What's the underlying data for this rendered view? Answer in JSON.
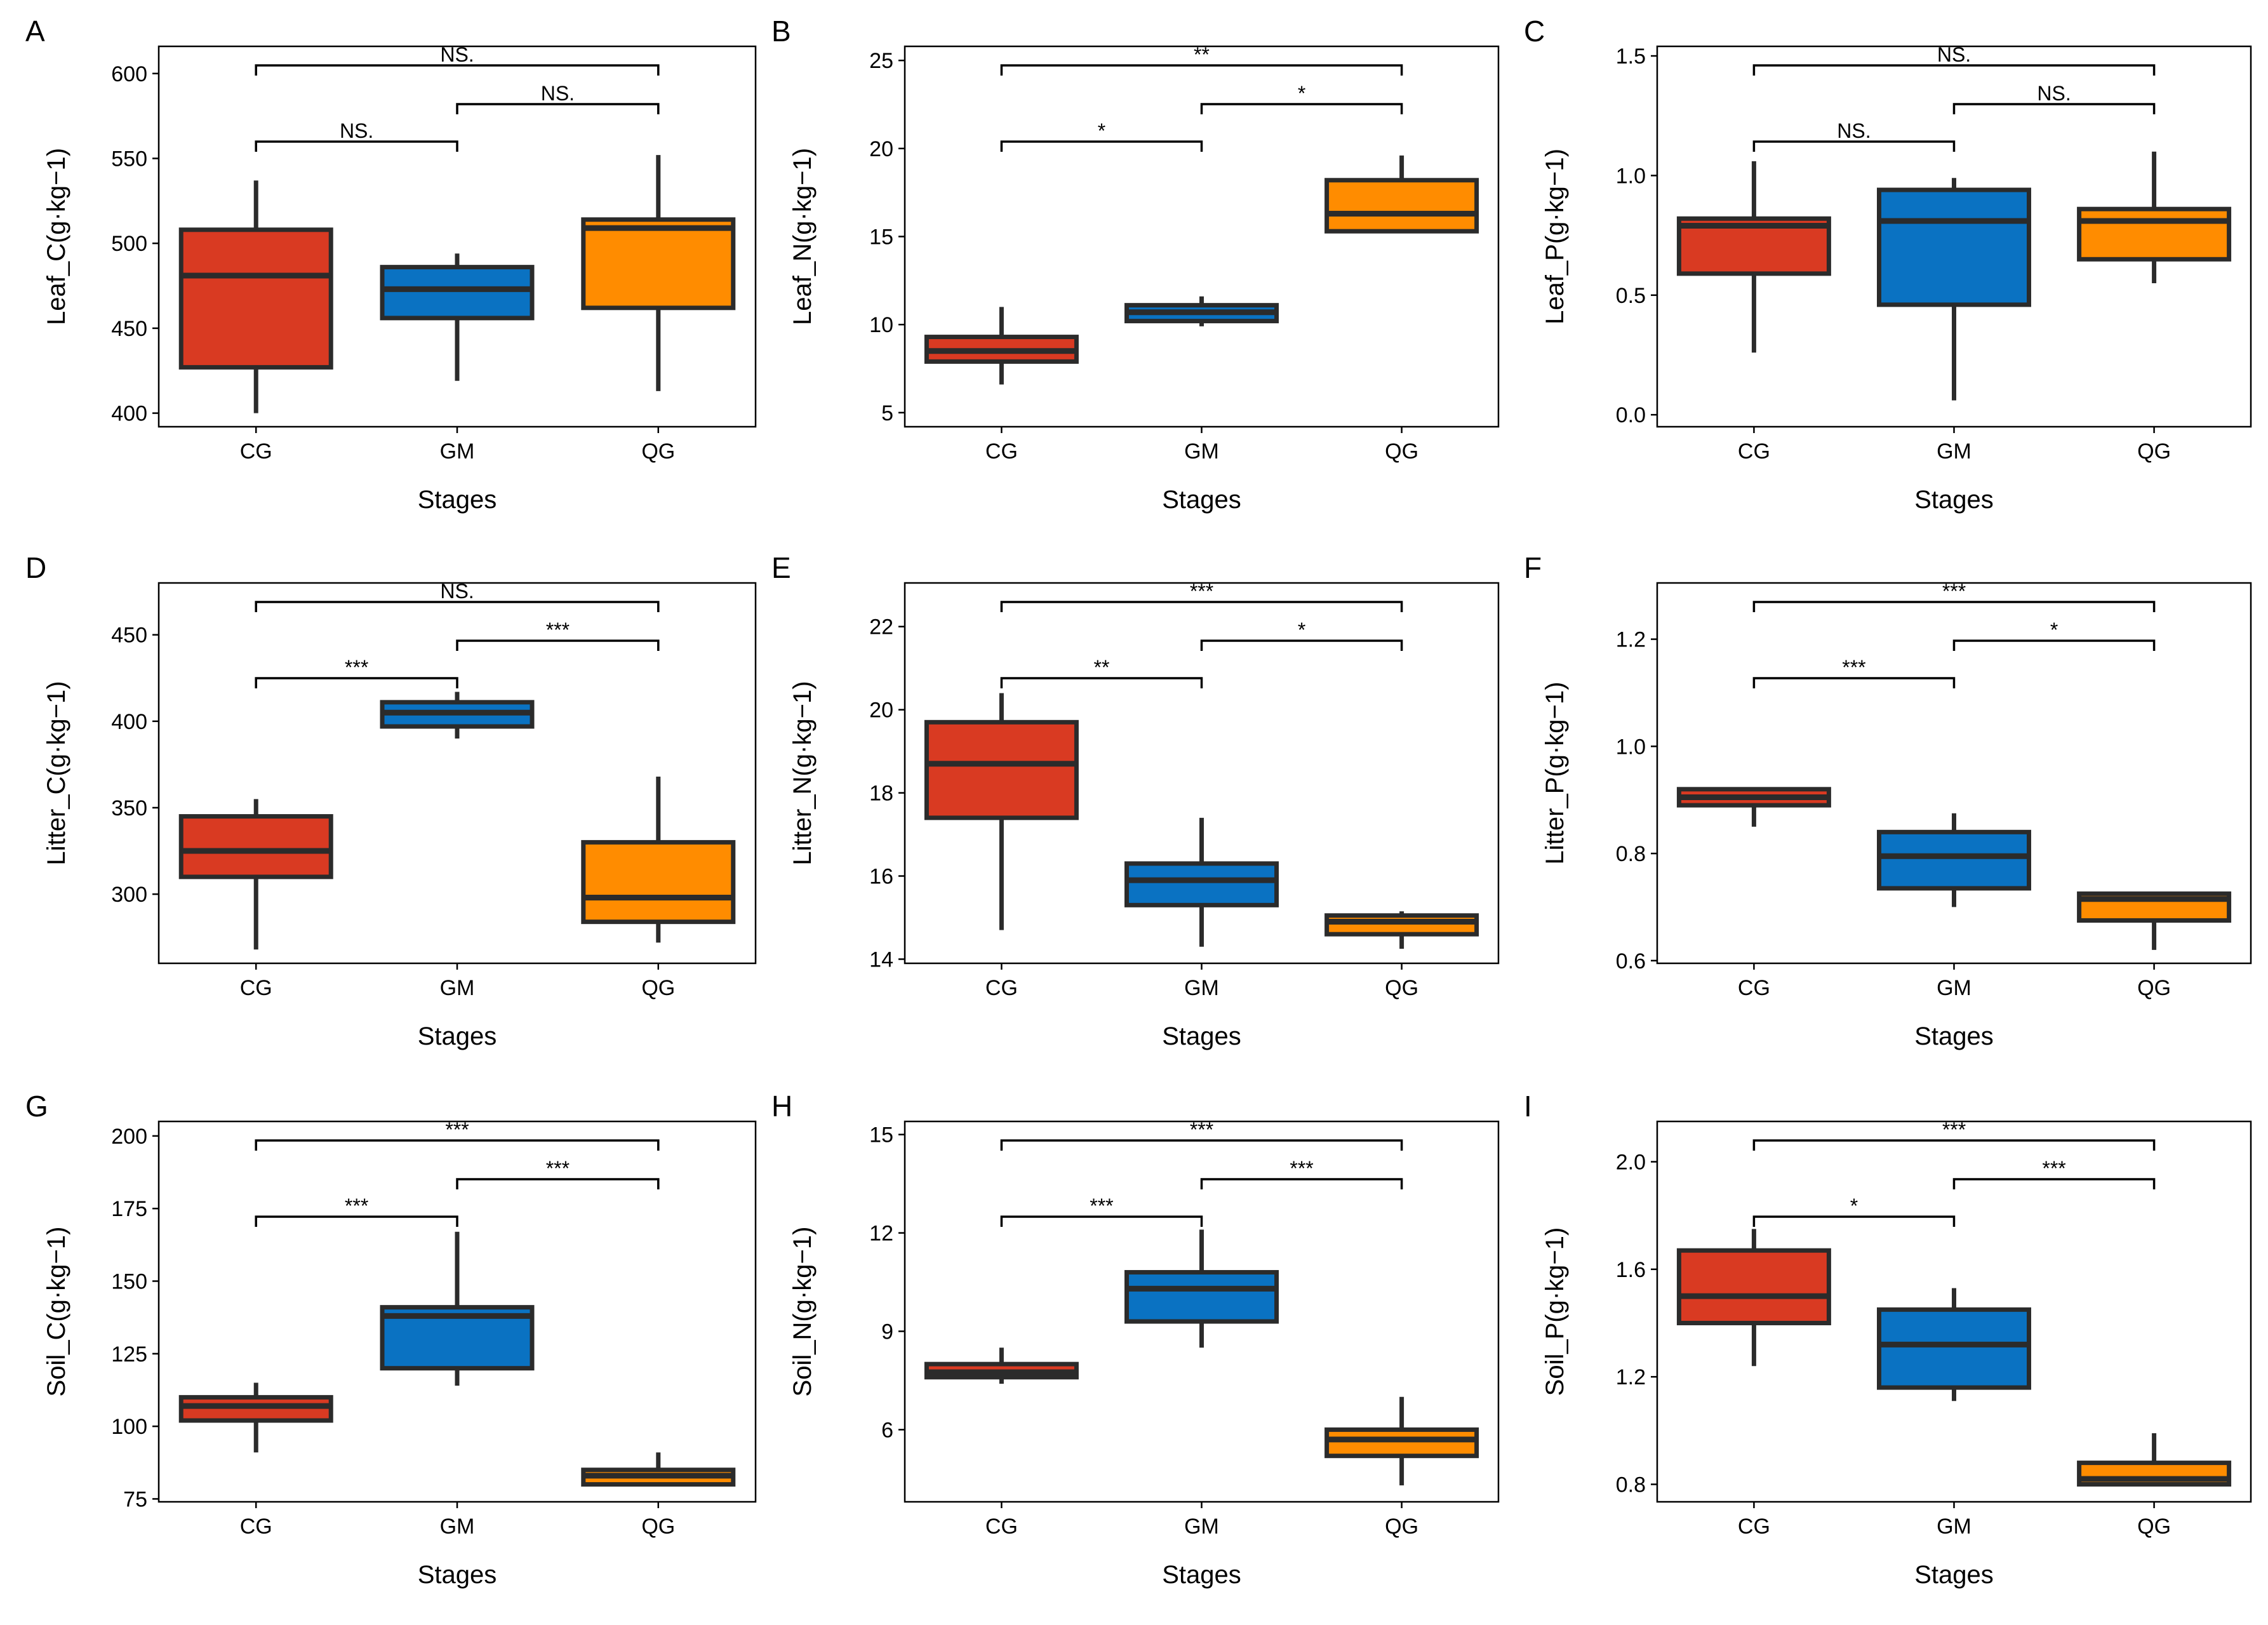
{
  "figure": {
    "x_title": "Stages",
    "categories": [
      "CG",
      "GM",
      "QG"
    ],
    "colors": {
      "CG": "#d93a22",
      "GM": "#0a72c2",
      "QG": "#ff8c00",
      "outline": "#2b2b2b"
    }
  },
  "chart_data": [
    {
      "type": "box",
      "panel": "A",
      "ylabel": "Leaf_C(g·kg−1)",
      "xlabel": "Stages",
      "categories": [
        "CG",
        "GM",
        "QG"
      ],
      "ylim": [
        392,
        616
      ],
      "yticks": [
        400,
        450,
        500,
        550,
        600
      ],
      "boxes": [
        {
          "category": "CG",
          "min": 400,
          "q1": 427,
          "median": 481,
          "q3": 508,
          "max": 537
        },
        {
          "category": "GM",
          "min": 419,
          "q1": 456,
          "median": 473,
          "q3": 486,
          "max": 494
        },
        {
          "category": "QG",
          "min": 413,
          "q1": 462,
          "median": 509,
          "q3": 514,
          "max": 552
        }
      ],
      "significance": [
        {
          "from": "CG",
          "to": "GM",
          "label": "NS."
        },
        {
          "from": "GM",
          "to": "QG",
          "label": "NS."
        },
        {
          "from": "CG",
          "to": "QG",
          "label": "NS."
        }
      ]
    },
    {
      "type": "box",
      "panel": "B",
      "ylabel": "Leaf_N(g·kg−1)",
      "xlabel": "Stages",
      "categories": [
        "CG",
        "GM",
        "QG"
      ],
      "ylim": [
        4.2,
        25.8
      ],
      "yticks": [
        5,
        10,
        15,
        20,
        25
      ],
      "boxes": [
        {
          "category": "CG",
          "min": 6.6,
          "q1": 7.9,
          "median": 8.5,
          "q3": 9.3,
          "max": 11.0
        },
        {
          "category": "GM",
          "min": 9.9,
          "q1": 10.2,
          "median": 10.7,
          "q3": 11.1,
          "max": 11.6
        },
        {
          "category": "QG",
          "min": 15.3,
          "q1": 15.3,
          "median": 16.3,
          "q3": 18.2,
          "max": 19.6
        }
      ],
      "significance": [
        {
          "from": "CG",
          "to": "GM",
          "label": "*"
        },
        {
          "from": "GM",
          "to": "QG",
          "label": "*"
        },
        {
          "from": "CG",
          "to": "QG",
          "label": "**"
        }
      ]
    },
    {
      "type": "box",
      "panel": "C",
      "ylabel": "Leaf_P(g·kg−1)",
      "xlabel": "Stages",
      "categories": [
        "CG",
        "GM",
        "QG"
      ],
      "ylim": [
        -0.05,
        1.54
      ],
      "yticks": [
        0.0,
        0.5,
        1.0,
        1.5
      ],
      "boxes": [
        {
          "category": "CG",
          "min": 0.26,
          "q1": 0.59,
          "median": 0.79,
          "q3": 0.82,
          "max": 1.06
        },
        {
          "category": "GM",
          "min": 0.06,
          "q1": 0.46,
          "median": 0.81,
          "q3": 0.94,
          "max": 0.99
        },
        {
          "category": "QG",
          "min": 0.55,
          "q1": 0.65,
          "median": 0.81,
          "q3": 0.86,
          "max": 1.1
        }
      ],
      "significance": [
        {
          "from": "CG",
          "to": "GM",
          "label": "NS."
        },
        {
          "from": "GM",
          "to": "QG",
          "label": "NS."
        },
        {
          "from": "CG",
          "to": "QG",
          "label": "NS."
        }
      ]
    },
    {
      "type": "box",
      "panel": "D",
      "ylabel": "Litter_C(g·kg−1)",
      "xlabel": "Stages",
      "categories": [
        "CG",
        "GM",
        "QG"
      ],
      "ylim": [
        260,
        480
      ],
      "yticks": [
        300,
        350,
        400,
        450
      ],
      "boxes": [
        {
          "category": "CG",
          "min": 268,
          "q1": 310,
          "median": 325,
          "q3": 345,
          "max": 355
        },
        {
          "category": "GM",
          "min": 390,
          "q1": 397,
          "median": 405,
          "q3": 411,
          "max": 417
        },
        {
          "category": "QG",
          "min": 272,
          "q1": 284,
          "median": 298,
          "q3": 330,
          "max": 368
        }
      ],
      "significance": [
        {
          "from": "CG",
          "to": "GM",
          "label": "***"
        },
        {
          "from": "GM",
          "to": "QG",
          "label": "***"
        },
        {
          "from": "CG",
          "to": "QG",
          "label": "NS."
        }
      ]
    },
    {
      "type": "box",
      "panel": "E",
      "ylabel": "Litter_N(g·kg−1)",
      "xlabel": "Stages",
      "categories": [
        "CG",
        "GM",
        "QG"
      ],
      "ylim": [
        13.9,
        23.05
      ],
      "yticks": [
        14,
        16,
        18,
        20,
        22
      ],
      "boxes": [
        {
          "category": "CG",
          "min": 14.7,
          "q1": 17.4,
          "median": 18.7,
          "q3": 19.7,
          "max": 20.4
        },
        {
          "category": "GM",
          "min": 14.3,
          "q1": 15.3,
          "median": 15.9,
          "q3": 16.3,
          "max": 17.4
        },
        {
          "category": "QG",
          "min": 14.25,
          "q1": 14.6,
          "median": 14.9,
          "q3": 15.05,
          "max": 15.15
        }
      ],
      "significance": [
        {
          "from": "CG",
          "to": "GM",
          "label": "**"
        },
        {
          "from": "GM",
          "to": "QG",
          "label": "*"
        },
        {
          "from": "CG",
          "to": "QG",
          "label": "***"
        }
      ]
    },
    {
      "type": "box",
      "panel": "F",
      "ylabel": "Litter_P(g·kg−1)",
      "xlabel": "Stages",
      "categories": [
        "CG",
        "GM",
        "QG"
      ],
      "ylim": [
        0.595,
        1.305
      ],
      "yticks": [
        0.6,
        0.8,
        1.0,
        1.2
      ],
      "boxes": [
        {
          "category": "CG",
          "min": 0.85,
          "q1": 0.89,
          "median": 0.905,
          "q3": 0.92,
          "max": 0.92
        },
        {
          "category": "GM",
          "min": 0.7,
          "q1": 0.735,
          "median": 0.795,
          "q3": 0.84,
          "max": 0.875
        },
        {
          "category": "QG",
          "min": 0.62,
          "q1": 0.675,
          "median": 0.715,
          "q3": 0.725,
          "max": 0.725
        }
      ],
      "significance": [
        {
          "from": "CG",
          "to": "GM",
          "label": "***"
        },
        {
          "from": "GM",
          "to": "QG",
          "label": "*"
        },
        {
          "from": "CG",
          "to": "QG",
          "label": "***"
        }
      ]
    },
    {
      "type": "box",
      "panel": "G",
      "ylabel": "Soil_C(g·kg−1)",
      "xlabel": "Stages",
      "categories": [
        "CG",
        "GM",
        "QG"
      ],
      "ylim": [
        74,
        205
      ],
      "yticks": [
        75,
        100,
        125,
        150,
        175,
        200
      ],
      "boxes": [
        {
          "category": "CG",
          "min": 91,
          "q1": 102,
          "median": 107,
          "q3": 110,
          "max": 115
        },
        {
          "category": "GM",
          "min": 114,
          "q1": 120,
          "median": 138,
          "q3": 141,
          "max": 167
        },
        {
          "category": "QG",
          "min": 80,
          "q1": 80,
          "median": 83,
          "q3": 85,
          "max": 91
        }
      ],
      "significance": [
        {
          "from": "CG",
          "to": "GM",
          "label": "***"
        },
        {
          "from": "GM",
          "to": "QG",
          "label": "***"
        },
        {
          "from": "CG",
          "to": "QG",
          "label": "***"
        }
      ]
    },
    {
      "type": "box",
      "panel": "H",
      "ylabel": "Soil_N(g·kg−1)",
      "xlabel": "Stages",
      "categories": [
        "CG",
        "GM",
        "QG"
      ],
      "ylim": [
        3.8,
        15.4
      ],
      "yticks": [
        6,
        9,
        12,
        15
      ],
      "boxes": [
        {
          "category": "CG",
          "min": 7.4,
          "q1": 7.6,
          "median": 7.75,
          "q3": 8.0,
          "max": 8.5
        },
        {
          "category": "GM",
          "min": 8.5,
          "q1": 9.3,
          "median": 10.3,
          "q3": 10.8,
          "max": 12.1
        },
        {
          "category": "QG",
          "min": 4.3,
          "q1": 5.2,
          "median": 5.7,
          "q3": 6.0,
          "max": 7.0
        }
      ],
      "significance": [
        {
          "from": "CG",
          "to": "GM",
          "label": "***"
        },
        {
          "from": "GM",
          "to": "QG",
          "label": "***"
        },
        {
          "from": "CG",
          "to": "QG",
          "label": "***"
        }
      ]
    },
    {
      "type": "box",
      "panel": "I",
      "ylabel": "Soil_P(g·kg−1)",
      "xlabel": "Stages",
      "categories": [
        "CG",
        "GM",
        "QG"
      ],
      "ylim": [
        0.735,
        2.15
      ],
      "yticks": [
        0.8,
        1.2,
        1.6,
        2.0
      ],
      "boxes": [
        {
          "category": "CG",
          "min": 1.24,
          "q1": 1.4,
          "median": 1.5,
          "q3": 1.67,
          "max": 1.75
        },
        {
          "category": "GM",
          "min": 1.11,
          "q1": 1.16,
          "median": 1.32,
          "q3": 1.45,
          "max": 1.53
        },
        {
          "category": "QG",
          "min": 0.8,
          "q1": 0.8,
          "median": 0.82,
          "q3": 0.88,
          "max": 0.99
        }
      ],
      "significance": [
        {
          "from": "CG",
          "to": "GM",
          "label": "*"
        },
        {
          "from": "GM",
          "to": "QG",
          "label": "***"
        },
        {
          "from": "CG",
          "to": "QG",
          "label": "***"
        }
      ]
    }
  ]
}
